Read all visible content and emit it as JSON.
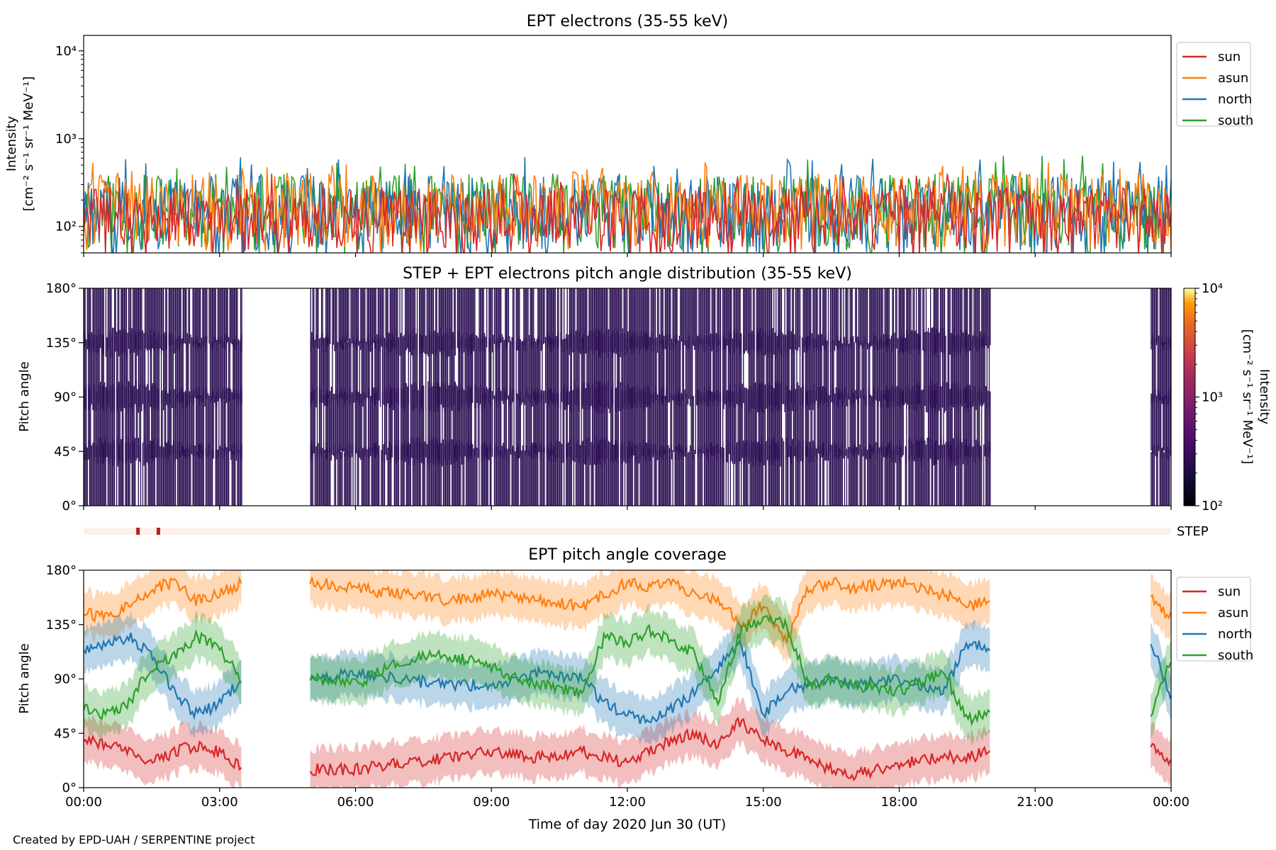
{
  "figure": {
    "xlabel": "Time of day 2020 Jun 30 (UT)",
    "x_ticks": [
      "00:00",
      "03:00",
      "06:00",
      "09:00",
      "12:00",
      "15:00",
      "18:00",
      "21:00",
      "00:00"
    ],
    "credit": "Created by EPD-UAH / SERPENTINE project",
    "colors": {
      "sun": "#d62728",
      "asun": "#ff7f0e",
      "north": "#1f77b4",
      "south": "#2ca02c",
      "pad_fill": "#2a0d52",
      "step_band": "#fdf0ea",
      "step_mark": "#b22222"
    }
  },
  "chart_data": [
    {
      "type": "line",
      "title": "EPT electrons (35-55 keV)",
      "ylabel": "Intensity",
      "ylabel_units": "[cm⁻² s⁻¹ sr⁻¹ MeV⁻¹]",
      "yscale": "log",
      "ylim": [
        50,
        15000
      ],
      "y_ticks": [
        "10²",
        "10³",
        "10⁴"
      ],
      "xlim_hours": [
        0,
        24
      ],
      "legend": {
        "placement": "outside-right",
        "entries": [
          "sun",
          "asun",
          "north",
          "south"
        ]
      },
      "series": [
        {
          "name": "sun",
          "typical_range": [
            50,
            280
          ],
          "peak": 400
        },
        {
          "name": "asun",
          "typical_range": [
            60,
            420
          ],
          "peak": 560
        },
        {
          "name": "north",
          "typical_range": [
            50,
            380
          ],
          "peak": 650
        },
        {
          "name": "south",
          "typical_range": [
            50,
            400
          ],
          "peak": 640
        }
      ]
    },
    {
      "type": "heatmap",
      "title": "STEP + EPT electrons pitch angle distribution (35-55 keV)",
      "ylabel": "Pitch angle",
      "ylim": [
        0,
        180
      ],
      "y_ticks": [
        "0°",
        "45°",
        "90°",
        "135°",
        "180°"
      ],
      "xlim_hours": [
        0,
        24
      ],
      "colorbar": {
        "label": "Intensity",
        "units": "[cm⁻² s⁻¹ sr⁻¹ MeV⁻¹]",
        "scale": "log",
        "range": [
          100,
          10000
        ],
        "ticks": [
          "10²",
          "10³",
          "10⁴"
        ],
        "colormap": "inferno"
      },
      "data_intervals_hours": [
        [
          0,
          3.5
        ],
        [
          5.0,
          20.0
        ],
        [
          23.55,
          24.0
        ]
      ]
    },
    {
      "type": "timeline",
      "label": "STEP",
      "markers_hours": [
        1.2,
        1.65
      ]
    },
    {
      "type": "line",
      "title": "EPT pitch angle coverage",
      "ylabel": "Pitch angle",
      "ylim": [
        0,
        180
      ],
      "y_ticks": [
        "0°",
        "45°",
        "90°",
        "135°",
        "180°"
      ],
      "xlim_hours": [
        0,
        24
      ],
      "legend": {
        "placement": "outside-right",
        "entries": [
          "sun",
          "asun",
          "north",
          "south"
        ]
      },
      "data_intervals_hours": [
        [
          0,
          3.5
        ],
        [
          5.0,
          20.0
        ],
        [
          23.55,
          24.0
        ]
      ],
      "series": [
        {
          "name": "sun",
          "x": [
            0,
            0.5,
            1,
            1.5,
            2,
            2.5,
            3,
            3.5,
            5,
            6,
            7,
            8,
            9,
            10,
            11,
            11.5,
            12,
            12.5,
            13,
            13.5,
            14,
            14.5,
            15,
            15.5,
            16,
            16.5,
            17,
            18,
            19,
            19.5,
            20,
            23.55,
            24
          ],
          "y": [
            40,
            35,
            30,
            20,
            30,
            35,
            30,
            15,
            15,
            15,
            20,
            25,
            30,
            25,
            30,
            25,
            20,
            30,
            40,
            45,
            35,
            55,
            40,
            30,
            25,
            15,
            10,
            20,
            25,
            25,
            30,
            35,
            20
          ]
        },
        {
          "name": "asun",
          "x": [
            0,
            0.5,
            1,
            1.5,
            2,
            2.5,
            3,
            3.5,
            5,
            6,
            7,
            8,
            9,
            10,
            11,
            11.5,
            12,
            12.5,
            13,
            13.5,
            14,
            14.5,
            15,
            15.5,
            16,
            16.5,
            17,
            18,
            19,
            19.5,
            20,
            23.55,
            24
          ],
          "y": [
            145,
            140,
            150,
            165,
            170,
            155,
            160,
            170,
            170,
            165,
            160,
            155,
            160,
            155,
            150,
            160,
            170,
            165,
            170,
            160,
            155,
            135,
            150,
            120,
            165,
            170,
            165,
            170,
            160,
            150,
            155,
            160,
            140
          ]
        },
        {
          "name": "north",
          "x": [
            0,
            0.5,
            1,
            1.5,
            2,
            2.5,
            3,
            3.5,
            5,
            6,
            7,
            8,
            9,
            10,
            11,
            11.5,
            12,
            12.5,
            13,
            13.5,
            14,
            14.5,
            15,
            15.5,
            16,
            16.5,
            17,
            18,
            19,
            19.5,
            20,
            23.55,
            24
          ],
          "y": [
            115,
            120,
            125,
            110,
            80,
            60,
            70,
            90,
            90,
            95,
            90,
            85,
            85,
            95,
            90,
            70,
            60,
            55,
            65,
            80,
            100,
            120,
            60,
            80,
            85,
            90,
            85,
            90,
            80,
            120,
            115,
            120,
            75
          ]
        },
        {
          "name": "south",
          "x": [
            0,
            0.5,
            1,
            1.5,
            2,
            2.5,
            3,
            3.5,
            5,
            6,
            7,
            8,
            9,
            10,
            11,
            11.5,
            12,
            12.5,
            13,
            13.5,
            14,
            14.5,
            15,
            15.5,
            16,
            16.5,
            17,
            18,
            19,
            19.5,
            20,
            23.55,
            24
          ],
          "y": [
            65,
            60,
            70,
            100,
            110,
            125,
            115,
            90,
            90,
            85,
            105,
            110,
            100,
            85,
            80,
            125,
            120,
            130,
            120,
            110,
            70,
            130,
            140,
            135,
            85,
            90,
            85,
            80,
            95,
            55,
            65,
            60,
            105
          ]
        }
      ]
    }
  ]
}
